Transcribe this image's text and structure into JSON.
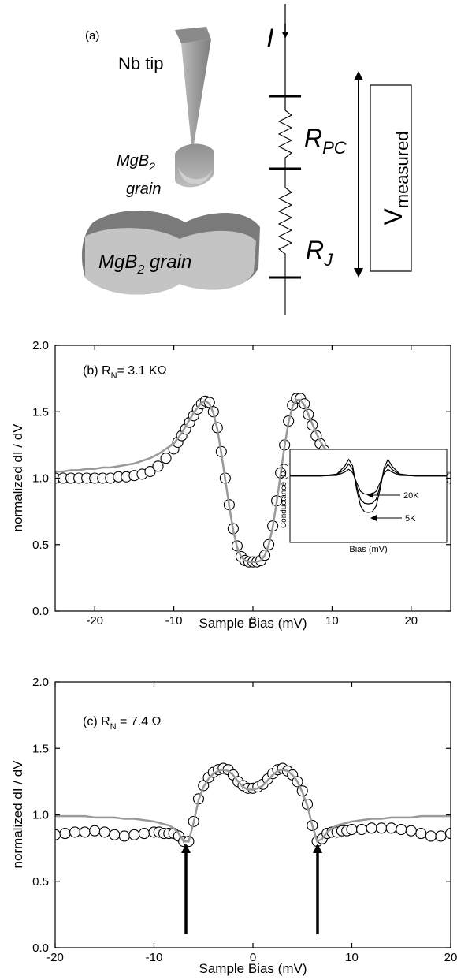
{
  "schematic": {
    "panel_label": "(a)",
    "tip_label": "Nb tip",
    "small_grain_label": [
      "MgB",
      "2",
      "grain"
    ],
    "big_grain_label": [
      "MgB",
      "2",
      " grain"
    ],
    "current_label": "I",
    "r_pc_label": [
      "R",
      "PC"
    ],
    "r_j_label": [
      "R",
      "J"
    ],
    "v_label": [
      "V",
      "measured"
    ]
  },
  "chart_data": [
    {
      "type": "scatter",
      "annotation": [
        "(b) R",
        "N",
        "= 3.1 KΩ"
      ],
      "xlabel": "Sample Bias (mV)",
      "ylabel": "normalized dI / dV",
      "xlim": [
        -25,
        25
      ],
      "ylim": [
        0,
        2
      ],
      "xticks": [
        -20,
        -10,
        0,
        10,
        20
      ],
      "yticks": [
        {
          "value": 0,
          "label": "0.0"
        },
        {
          "value": 0.5,
          "label": "0.5"
        },
        {
          "value": 1,
          "label": "1.0"
        },
        {
          "value": 1.5,
          "label": "1.5"
        },
        {
          "value": 2,
          "label": "2.0"
        }
      ],
      "x": [
        -25,
        -24,
        -23,
        -22,
        -21,
        -20,
        -19,
        -18,
        -17,
        -16,
        -15,
        -14,
        -13,
        -12,
        -11,
        -10,
        -9.5,
        -9,
        -8.5,
        -8,
        -7.5,
        -7,
        -6.5,
        -6,
        -5.5,
        -5,
        -4.5,
        -4,
        -3.5,
        -3,
        -2.5,
        -2,
        -1.5,
        -1,
        -0.5,
        0,
        0.5,
        1,
        1.5,
        2,
        2.5,
        3,
        3.5,
        4,
        4.5,
        5,
        5.5,
        6,
        6.5,
        7,
        7.5,
        8,
        8.5,
        9,
        9.5,
        10,
        11,
        12,
        13,
        14,
        15,
        16,
        17,
        18,
        19,
        20,
        21,
        22,
        23,
        24,
        25
      ],
      "series": [
        {
          "style": "marker",
          "color": "#000000",
          "values": [
            1.0,
            1.0,
            1.0,
            1.0,
            1.0,
            1.0,
            1.0,
            1.0,
            1.01,
            1.01,
            1.02,
            1.03,
            1.05,
            1.09,
            1.15,
            1.22,
            1.27,
            1.32,
            1.37,
            1.42,
            1.47,
            1.52,
            1.56,
            1.58,
            1.57,
            1.5,
            1.38,
            1.2,
            1.0,
            0.8,
            0.62,
            0.49,
            0.41,
            0.38,
            0.37,
            0.37,
            0.37,
            0.38,
            0.42,
            0.5,
            0.64,
            0.83,
            1.04,
            1.25,
            1.43,
            1.55,
            1.6,
            1.6,
            1.56,
            1.48,
            1.4,
            1.32,
            1.26,
            1.21,
            1.17,
            1.14,
            1.1,
            1.07,
            1.05,
            1.04,
            1.03,
            1.02,
            1.01,
            1.01,
            1.0,
            0.99,
            0.99,
            1.0,
            1.0,
            1.0,
            1.0
          ]
        },
        {
          "style": "line",
          "color": "#999999",
          "values": [
            1.05,
            1.05,
            1.06,
            1.06,
            1.07,
            1.07,
            1.08,
            1.08,
            1.09,
            1.1,
            1.11,
            1.13,
            1.15,
            1.18,
            1.22,
            1.26,
            1.3,
            1.34,
            1.39,
            1.44,
            1.49,
            1.53,
            1.57,
            1.58,
            1.56,
            1.49,
            1.37,
            1.19,
            0.99,
            0.79,
            0.61,
            0.48,
            0.41,
            0.38,
            0.37,
            0.37,
            0.37,
            0.38,
            0.42,
            0.5,
            0.63,
            0.82,
            1.03,
            1.24,
            1.42,
            1.54,
            1.59,
            1.59,
            1.55,
            1.48,
            1.41,
            1.34,
            1.28,
            1.23,
            1.2,
            1.17,
            1.15,
            1.12,
            1.1,
            1.09,
            1.08,
            1.07,
            1.07,
            1.06,
            1.06,
            1.05,
            1.05,
            1.05,
            1.05,
            1.04,
            1.04
          ]
        }
      ],
      "inset": {
        "xlabel": "Bias (mV)",
        "ylabel": [
          "Conductance (Ω",
          "-1",
          ")"
        ],
        "annotations": [
          "20K",
          "5K"
        ],
        "xlim": [
          -10,
          10
        ],
        "ylim": [
          0,
          1.4
        ],
        "x": [
          -10,
          -6,
          -4,
          -3,
          -2.5,
          -2,
          -1.5,
          -1,
          -0.5,
          0,
          0.5,
          1,
          1.5,
          2,
          2.5,
          3,
          4,
          6,
          10
        ],
        "series": [
          {
            "color": "#000000",
            "values": [
              1,
              1,
              1.03,
              1.15,
              1.25,
              1.15,
              0.8,
              0.55,
              0.46,
              0.45,
              0.46,
              0.55,
              0.8,
              1.12,
              1.25,
              1.15,
              1.03,
              1,
              1
            ]
          },
          {
            "color": "#000000",
            "values": [
              1,
              1,
              1.02,
              1.1,
              1.18,
              1.1,
              0.85,
              0.65,
              0.59,
              0.58,
              0.59,
              0.65,
              0.85,
              1.08,
              1.18,
              1.1,
              1.02,
              1,
              1
            ]
          },
          {
            "color": "#000000",
            "values": [
              1,
              1,
              1.01,
              1.06,
              1.1,
              1.05,
              0.9,
              0.77,
              0.73,
              0.72,
              0.73,
              0.77,
              0.9,
              1.04,
              1.1,
              1.06,
              1.01,
              1,
              1
            ]
          }
        ]
      }
    },
    {
      "type": "scatter",
      "annotation": [
        "(c) R",
        "N",
        " = 7.4 Ω"
      ],
      "xlabel": "Sample Bias (mV)",
      "ylabel": "normalized dI / dV",
      "xlim": [
        -20,
        20
      ],
      "ylim": [
        0,
        2
      ],
      "xticks": [
        -20,
        -10,
        0,
        10,
        20
      ],
      "yticks": [
        {
          "value": 0,
          "label": "0.0"
        },
        {
          "value": 0.5,
          "label": "0.5"
        },
        {
          "value": 1,
          "label": "1.0"
        },
        {
          "value": 1.5,
          "label": "1.5"
        },
        {
          "value": 2,
          "label": "2.0"
        }
      ],
      "x": [
        -20,
        -19,
        -18,
        -17,
        -16,
        -15,
        -14,
        -13,
        -12,
        -11,
        -10,
        -9.5,
        -9,
        -8.5,
        -8,
        -7.5,
        -7,
        -6.5,
        -6,
        -5.5,
        -5,
        -4.5,
        -4,
        -3.5,
        -3,
        -2.5,
        -2,
        -1.5,
        -1,
        -0.5,
        0,
        0.5,
        1,
        1.5,
        2,
        2.5,
        3,
        3.5,
        4,
        4.5,
        5,
        5.5,
        6,
        6.5,
        7,
        7.5,
        8,
        8.5,
        9,
        9.5,
        10,
        11,
        12,
        13,
        14,
        15,
        16,
        17,
        18,
        19,
        20
      ],
      "series": [
        {
          "style": "marker",
          "color": "#000000",
          "values": [
            0.85,
            0.86,
            0.87,
            0.87,
            0.88,
            0.87,
            0.85,
            0.84,
            0.85,
            0.86,
            0.87,
            0.87,
            0.86,
            0.86,
            0.86,
            0.84,
            0.8,
            0.8,
            0.95,
            1.12,
            1.22,
            1.28,
            1.32,
            1.34,
            1.35,
            1.34,
            1.3,
            1.25,
            1.22,
            1.2,
            1.2,
            1.21,
            1.23,
            1.27,
            1.31,
            1.34,
            1.35,
            1.33,
            1.3,
            1.25,
            1.18,
            1.08,
            0.92,
            0.8,
            0.82,
            0.86,
            0.87,
            0.87,
            0.88,
            0.88,
            0.89,
            0.89,
            0.9,
            0.9,
            0.9,
            0.89,
            0.88,
            0.86,
            0.84,
            0.84,
            0.86
          ]
        },
        {
          "style": "line",
          "color": "#999999",
          "values": [
            0.99,
            0.99,
            0.99,
            0.99,
            0.98,
            0.98,
            0.98,
            0.97,
            0.97,
            0.96,
            0.95,
            0.94,
            0.93,
            0.92,
            0.9,
            0.86,
            0.8,
            0.8,
            0.94,
            1.11,
            1.21,
            1.27,
            1.31,
            1.33,
            1.34,
            1.33,
            1.3,
            1.25,
            1.21,
            1.19,
            1.19,
            1.2,
            1.22,
            1.26,
            1.3,
            1.33,
            1.34,
            1.33,
            1.3,
            1.25,
            1.17,
            1.07,
            0.92,
            0.8,
            0.82,
            0.87,
            0.9,
            0.92,
            0.93,
            0.94,
            0.95,
            0.96,
            0.97,
            0.97,
            0.98,
            0.98,
            0.98,
            0.99,
            0.99,
            0.99,
            0.99
          ]
        }
      ]
    }
  ]
}
